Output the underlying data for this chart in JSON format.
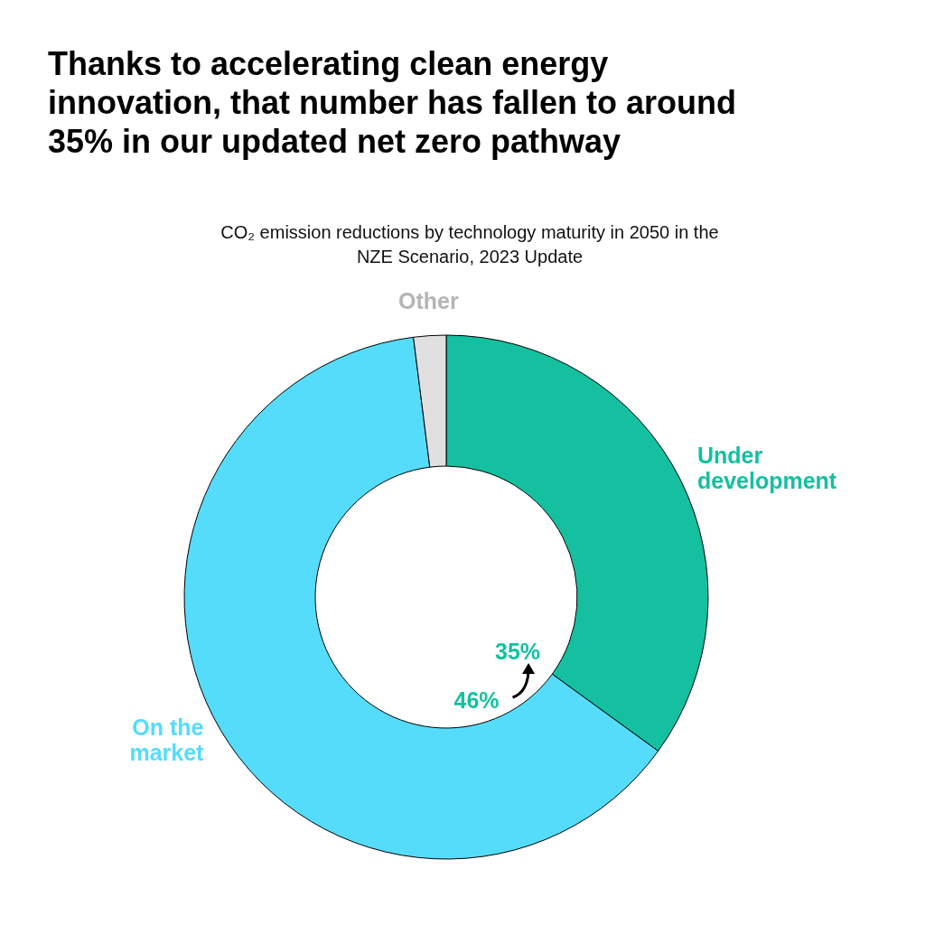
{
  "chart_data": {
    "type": "donut",
    "title": "Thanks to accelerating clean energy innovation, that number has fallen to around 35% in our updated net zero pathway",
    "subtitle": "CO₂ emission reductions by technology maturity in 2050 in the NZE Scenario, 2023 Update",
    "categories": [
      "Under development",
      "On the market",
      "Other"
    ],
    "values": [
      35,
      63,
      2
    ],
    "colors": [
      "#14c0a0",
      "#55dcfa",
      "#e0e0e0"
    ],
    "value_labels": [
      "35%",
      null,
      null
    ],
    "annotations": [
      "46%"
    ]
  }
}
